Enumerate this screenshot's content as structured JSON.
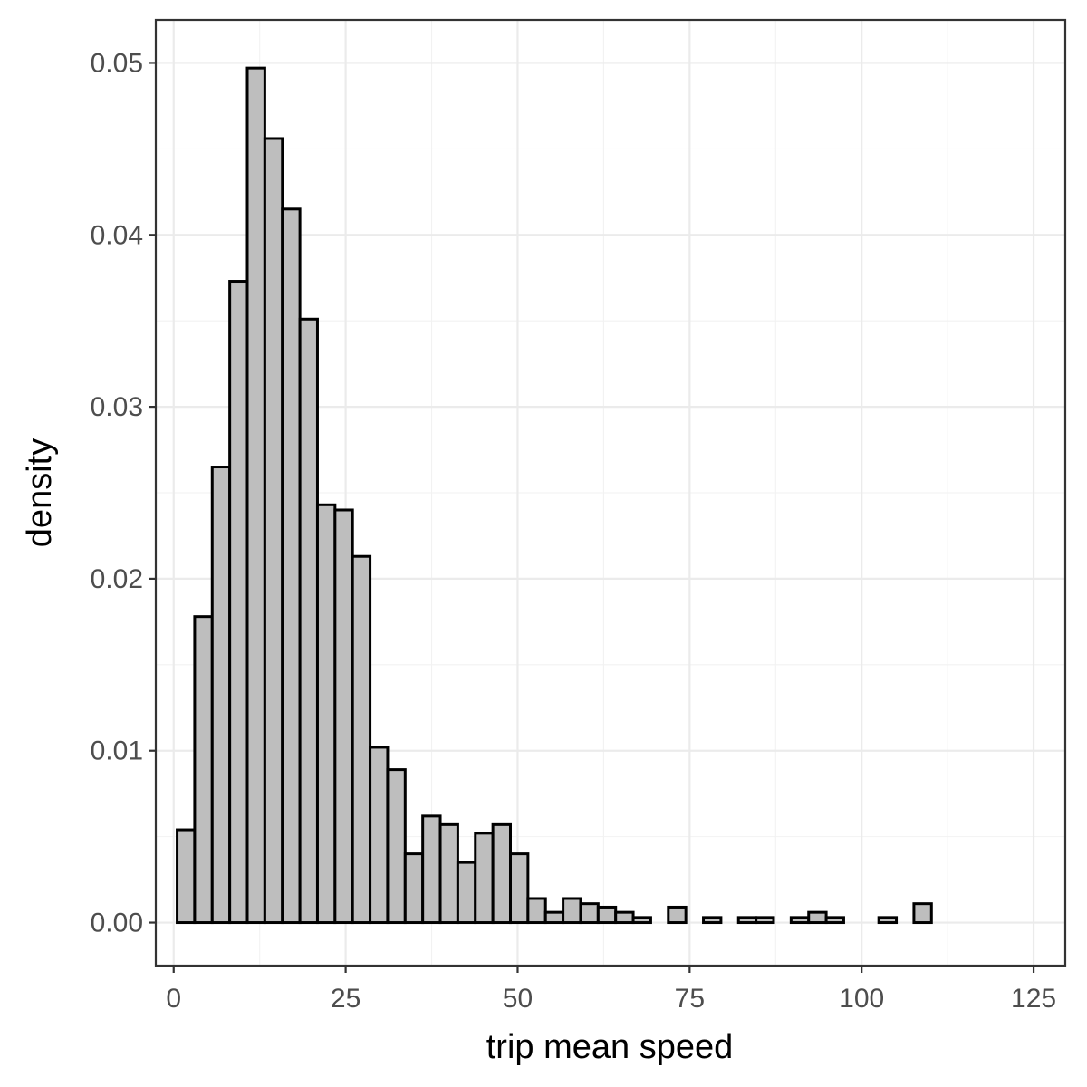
{
  "chart_data": {
    "type": "bar",
    "subtype": "histogram",
    "xlabel": "trip mean speed",
    "ylabel": "density",
    "xlim": [
      -2.6,
      129.6
    ],
    "ylim": [
      -0.0025,
      0.0525
    ],
    "x_ticks": [
      0,
      25,
      50,
      75,
      100,
      125
    ],
    "x_tick_labels": [
      "0",
      "25",
      "50",
      "75",
      "100",
      "125"
    ],
    "y_ticks": [
      0.0,
      0.01,
      0.02,
      0.03,
      0.04,
      0.05
    ],
    "y_tick_labels": [
      "0.00",
      "0.01",
      "0.02",
      "0.03",
      "0.04",
      "0.05"
    ],
    "grid": true,
    "theme": "bw",
    "bin_start": 0.5,
    "bin_width": 2.55,
    "values": [
      0.0054,
      0.0178,
      0.0265,
      0.0373,
      0.0497,
      0.0456,
      0.0415,
      0.0351,
      0.0243,
      0.024,
      0.0213,
      0.0102,
      0.0089,
      0.004,
      0.0062,
      0.0057,
      0.0035,
      0.0052,
      0.0057,
      0.004,
      0.0014,
      0.0006,
      0.0014,
      0.0011,
      0.0009,
      0.0006,
      0.0003,
      0.0,
      0.0009,
      0.0,
      0.0003,
      0.0,
      0.0003,
      0.0003,
      0.0,
      0.0003,
      0.0006,
      0.0003,
      0.0,
      0.0,
      0.0003,
      0.0,
      0.0011,
      0.0,
      0.0,
      0.0,
      0.0,
      0.0,
      0.0
    ],
    "colors": {
      "fill": "#bebebe",
      "stroke": "#000000",
      "grid_major": "#ebebeb",
      "grid_minor": "#f2f2f2",
      "panel_border": "#333333",
      "tick_text": "#4d4d4d"
    }
  }
}
